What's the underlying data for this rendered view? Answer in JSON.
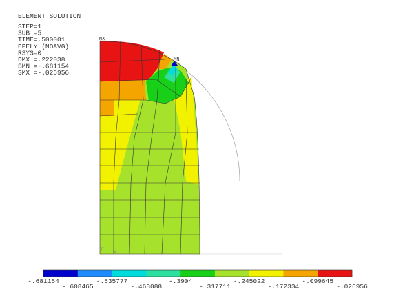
{
  "header": {
    "title": "ELEMENT SOLUTION",
    "lines": [
      "STEP=1",
      "SUB =5",
      "TIME=.500001",
      "EPELY     (NOAVG)",
      "RSYS=0",
      "DMX =.222038",
      "SMN =-.681154",
      "SMX =-.026956"
    ]
  },
  "markers": {
    "max": "MX",
    "min": "MN"
  },
  "triad": {
    "y": "Y",
    "x": "X"
  },
  "legend": {
    "colors": [
      "#0000cc",
      "#1e8cff",
      "#00dcdc",
      "#2ee0a0",
      "#18d018",
      "#a6e22c",
      "#f2f200",
      "#f5a500",
      "#e81414"
    ],
    "labels": [
      "-.681154",
      "-.608465",
      "-.535777",
      "-.463088",
      "-.3904",
      "-.317711",
      "-.245022",
      "-.172334",
      "-.099645",
      "-.026956"
    ]
  }
}
